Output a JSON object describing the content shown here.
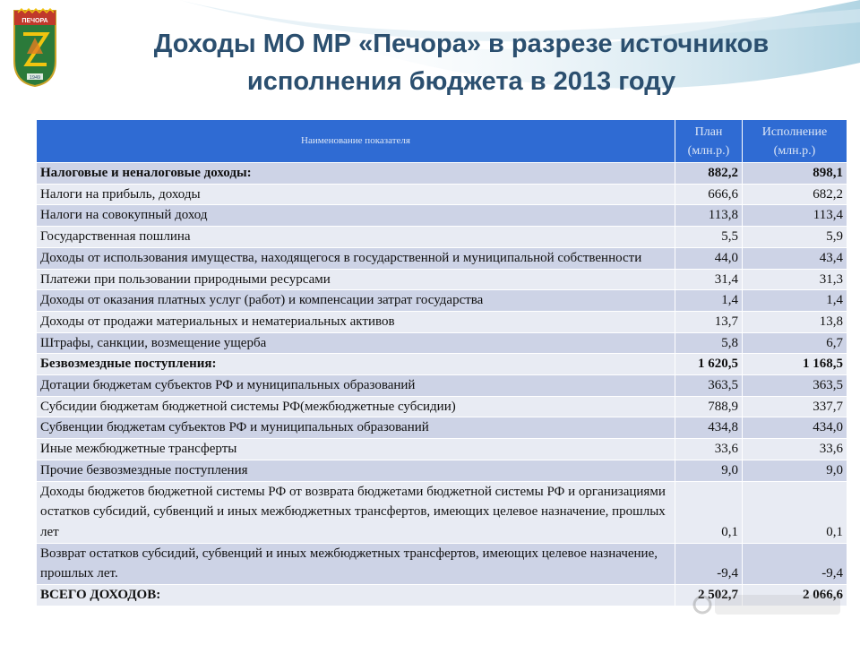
{
  "header": {
    "title_line1": "Доходы МО МР «Печора» в разрезе источников",
    "title_line2": "исполнения бюджета в 2013 году",
    "emblem_text": "ПЕЧОРА",
    "emblem_year": "1949"
  },
  "table": {
    "headers": {
      "name": "Наименование показателя",
      "plan": "План (млн.р.)",
      "execution": "Исполнение (млн.р.)"
    },
    "rows": [
      {
        "name": "Налоговые и неналоговые доходы:",
        "plan": "882,2",
        "execution": "898,1"
      },
      {
        "name": "Налоги на прибыль,  доходы",
        "plan": "666,6",
        "execution": "682,2"
      },
      {
        "name": "Налоги на совокупный доход",
        "plan": "113,8",
        "execution": "113,4"
      },
      {
        "name": "Государственная пошлина",
        "plan": "5,5",
        "execution": "5,9"
      },
      {
        "name": "Доходы  от использования имущества, находящегося в государственной и муниципальной собственности",
        "plan": "44,0",
        "execution": "43,4"
      },
      {
        "name": "Платежи при пользовании природными ресурсами",
        "plan": "31,4",
        "execution": "31,3"
      },
      {
        "name": "Доходы от оказания платных услуг (работ) и компенсации затрат государства",
        "plan": "1,4",
        "execution": "1,4"
      },
      {
        "name": "Доходы от продажи материальных и нематериальных активов",
        "plan": "13,7",
        "execution": "13,8"
      },
      {
        "name": "Штрафы, санкции, возмещение ущерба",
        "plan": "5,8",
        "execution": "6,7"
      },
      {
        "name": "Безвозмездные поступления:",
        "plan": "1 620,5",
        "execution": "1 168,5"
      },
      {
        "name": "Дотации бюджетам субъектов РФ и муниципальных образований",
        "plan": "363,5",
        "execution": "363,5"
      },
      {
        "name": "Субсидии бюджетам бюджетной системы РФ(межбюджетные субсидии)",
        "plan": "788,9",
        "execution": "337,7"
      },
      {
        "name": "Субвенции бюджетам субъектов РФ и муниципальных образований",
        "plan": "434,8",
        "execution": "434,0"
      },
      {
        "name": "Иные межбюджетные трансферты",
        "plan": "33,6",
        "execution": "33,6"
      },
      {
        "name": "Прочие безвозмездные поступления",
        "plan": "9,0",
        "execution": "9,0"
      },
      {
        "name": "Доходы бюджетов бюджетной системы РФ от возврата бюджетами бюджетной системы РФ и организациями остатков субсидий, субвенций и иных межбюджетных трансфертов, имеющих целевое назначение, прошлых лет",
        "plan": "0,1",
        "execution": "0,1"
      },
      {
        "name": "Возврат остатков субсидий, субвенций и иных межбюджетных трансфертов, имеющих целевое назначение, прошлых лет.",
        "plan": "-9,4",
        "execution": "-9,4"
      },
      {
        "name": "ВСЕГО ДОХОДОВ:",
        "plan": "2 502,7",
        "execution": "2 066,6"
      }
    ]
  },
  "colors": {
    "header_bg": "#2f6bd3",
    "title": "#2b4f6f",
    "row_dark": "#cdd3e6",
    "row_light": "#e8ebf3"
  }
}
